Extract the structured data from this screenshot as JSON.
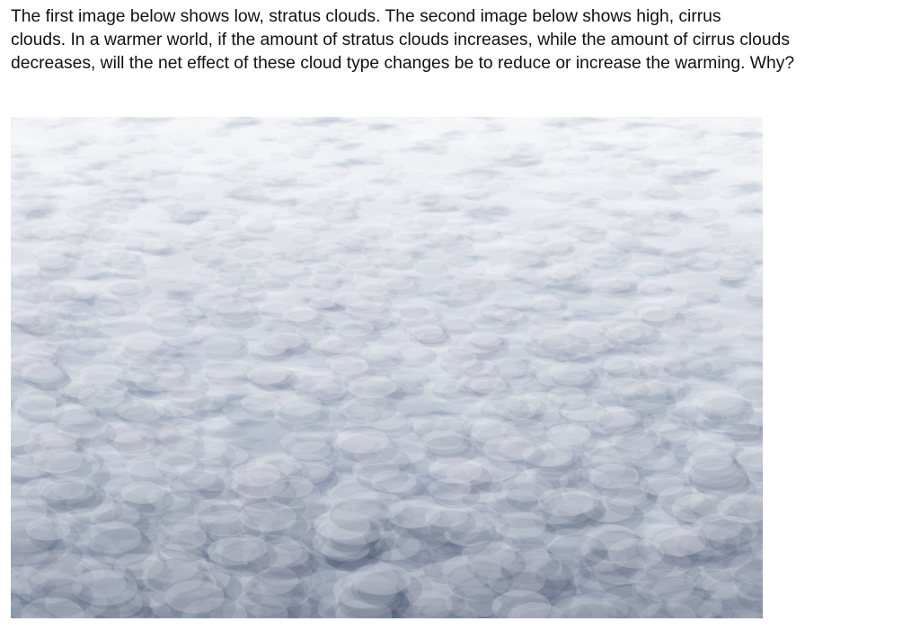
{
  "question": {
    "lines": [
      "The first image below shows low, stratus clouds. The second image below shows high, cirrus",
      "clouds. In a warmer world, if the amount of stratus clouds increases, while the amount of cirrus clouds",
      "decreases, will the net effect of these cloud type changes be to reduce or increase the warming. Why?"
    ]
  },
  "photo": {
    "subject": "stratus-cloud-layer",
    "colors": {
      "highlight": "#f4f5f8",
      "midtone": "#c6ccd8",
      "shadow": "#5f6d88",
      "deep_shadow": "#3f4c67"
    }
  }
}
